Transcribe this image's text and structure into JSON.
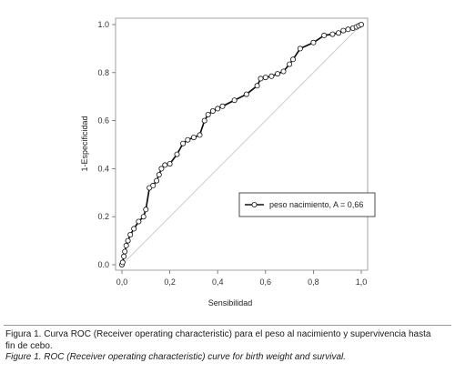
{
  "chart_data": {
    "type": "line",
    "xlabel": "Sensibilidad",
    "ylabel": "1-Especificidad",
    "xlim": [
      0,
      1
    ],
    "ylim": [
      0,
      1
    ],
    "x_ticks": [
      "0,0",
      "0,2",
      "0,4",
      "0,6",
      "0,8",
      "1,0"
    ],
    "y_ticks": [
      "0.0",
      "0.2",
      "0.4",
      "0.6",
      "0.8",
      "1.0"
    ],
    "tick_values": [
      0,
      0.2,
      0.4,
      0.6,
      0.8,
      1.0
    ],
    "legend": {
      "position": "lower-right",
      "label": "peso nacimiento, A = 0,66"
    },
    "reference_line": {
      "from": [
        0,
        0
      ],
      "to": [
        1,
        1
      ],
      "color": "#c8c8c8"
    },
    "series": [
      {
        "name": "peso nacimiento, A = 0,66",
        "color": "#111111",
        "points": [
          [
            0.0,
            0.0
          ],
          [
            0.003,
            0.01
          ],
          [
            0.008,
            0.035
          ],
          [
            0.012,
            0.055
          ],
          [
            0.018,
            0.08
          ],
          [
            0.025,
            0.1
          ],
          [
            0.035,
            0.125
          ],
          [
            0.05,
            0.15
          ],
          [
            0.07,
            0.18
          ],
          [
            0.09,
            0.2
          ],
          [
            0.1,
            0.23
          ],
          [
            0.115,
            0.32
          ],
          [
            0.13,
            0.33
          ],
          [
            0.145,
            0.35
          ],
          [
            0.155,
            0.375
          ],
          [
            0.165,
            0.4
          ],
          [
            0.18,
            0.415
          ],
          [
            0.2,
            0.42
          ],
          [
            0.23,
            0.46
          ],
          [
            0.255,
            0.505
          ],
          [
            0.275,
            0.52
          ],
          [
            0.3,
            0.53
          ],
          [
            0.325,
            0.54
          ],
          [
            0.345,
            0.6
          ],
          [
            0.36,
            0.625
          ],
          [
            0.38,
            0.64
          ],
          [
            0.4,
            0.65
          ],
          [
            0.42,
            0.66
          ],
          [
            0.47,
            0.685
          ],
          [
            0.52,
            0.71
          ],
          [
            0.565,
            0.745
          ],
          [
            0.58,
            0.775
          ],
          [
            0.6,
            0.78
          ],
          [
            0.625,
            0.785
          ],
          [
            0.65,
            0.795
          ],
          [
            0.675,
            0.805
          ],
          [
            0.7,
            0.835
          ],
          [
            0.715,
            0.855
          ],
          [
            0.745,
            0.9
          ],
          [
            0.8,
            0.925
          ],
          [
            0.845,
            0.955
          ],
          [
            0.88,
            0.96
          ],
          [
            0.905,
            0.965
          ],
          [
            0.925,
            0.975
          ],
          [
            0.945,
            0.98
          ],
          [
            0.965,
            0.985
          ],
          [
            0.98,
            0.99
          ],
          [
            0.99,
            0.995
          ],
          [
            1.0,
            1.0
          ]
        ]
      }
    ]
  },
  "caption": {
    "spanish_line1": "Figura 1. Curva ROC (Receiver operating characteristic) para el peso al nacimiento y supervivencia hasta",
    "spanish_line2": "fin de cebo.",
    "english": "Figure 1. ROC (Receiver operating characteristic) curve for birth weight and survival."
  }
}
